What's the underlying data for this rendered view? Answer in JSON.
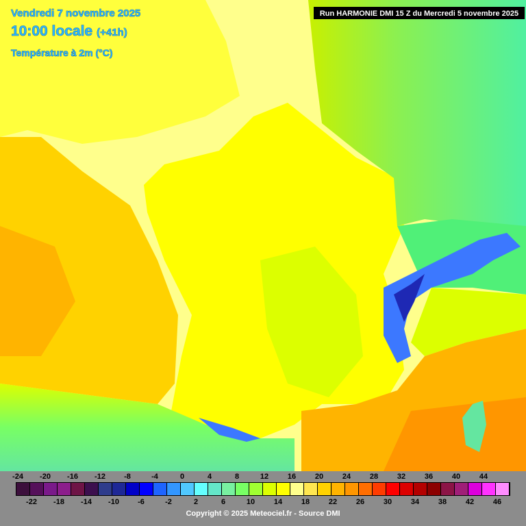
{
  "header": {
    "date_line": "Vendredi 7 novembre 2025",
    "time_line": "10:00 locale",
    "time_offset": "(+41h)",
    "variable": "Température à 2m (°C)"
  },
  "run_info": "Run HARMONIE DMI 15 Z du Mercredi 5 novembre 2025",
  "legend": {
    "ticks": [
      -24,
      -22,
      -20,
      -18,
      -16,
      -14,
      -12,
      -10,
      -8,
      -6,
      -4,
      -2,
      0,
      2,
      4,
      6,
      8,
      10,
      12,
      14,
      16,
      18,
      20,
      22,
      24,
      26,
      28,
      30,
      32,
      34,
      36,
      38,
      40,
      42,
      44,
      46
    ],
    "colors": [
      "#3c0f3c",
      "#55105a",
      "#7a1a8a",
      "#8c1e8c",
      "#6e1446",
      "#3c0f4e",
      "#2e3c8c",
      "#1e2896",
      "#0000c8",
      "#0000ff",
      "#1e64ff",
      "#3296ff",
      "#50c8ff",
      "#64ffff",
      "#64e6c8",
      "#78f0a0",
      "#78ff64",
      "#a0ff32",
      "#dcff00",
      "#ffff00",
      "#ffff8c",
      "#ffe650",
      "#ffd200",
      "#ffb400",
      "#ff9600",
      "#ff6e00",
      "#ff3c00",
      "#ff0000",
      "#dc0000",
      "#b40000",
      "#8c0000",
      "#8c1446",
      "#a01e78",
      "#dc00dc",
      "#ff32ff",
      "#ff8cff"
    ]
  },
  "footer": {
    "copyright": "Copyright © 2025 Meteociel.fr - Source DMI"
  }
}
